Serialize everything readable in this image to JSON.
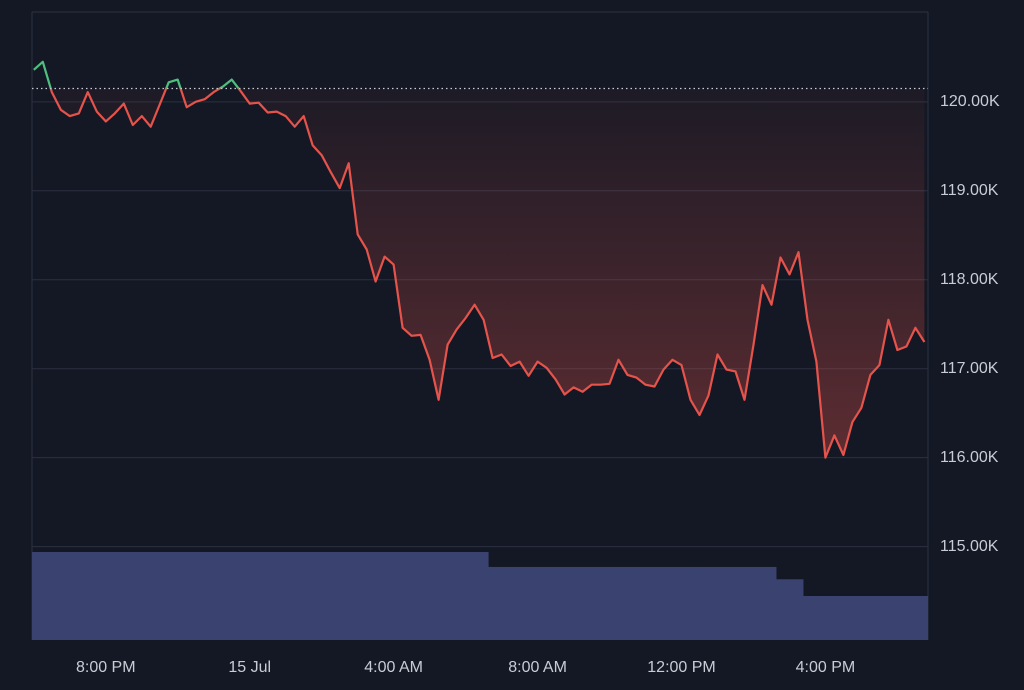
{
  "chart_data": {
    "type": "line",
    "x": [
      -6,
      -5.75,
      -5.5,
      -5.25,
      -5,
      -4.75,
      -4.5,
      -4.25,
      -4,
      -3.75,
      -3.5,
      -3.25,
      -3,
      -2.75,
      -2.5,
      -2.25,
      -2,
      -1.75,
      -1.5,
      -1.25,
      -1,
      -0.75,
      -0.5,
      -0.25,
      0,
      0.25,
      0.5,
      0.75,
      1,
      1.25,
      1.5,
      1.75,
      2,
      2.25,
      2.5,
      2.75,
      3,
      3.25,
      3.5,
      3.75,
      4,
      4.25,
      4.5,
      4.75,
      5,
      5.25,
      5.5,
      5.75,
      6,
      6.25,
      6.5,
      6.75,
      7,
      7.25,
      7.5,
      7.75,
      8,
      8.25,
      8.5,
      8.75,
      9,
      9.25,
      9.5,
      9.75,
      10,
      10.25,
      10.5,
      10.75,
      11,
      11.25,
      11.5,
      11.75,
      12,
      12.25,
      12.5,
      12.75,
      13,
      13.25,
      13.5,
      13.75,
      14,
      14.25,
      14.5,
      14.75,
      15,
      15.25,
      15.5,
      15.75,
      16,
      16.25,
      16.5,
      16.75,
      17,
      17.25,
      17.5,
      17.75,
      18,
      18.25,
      18.5,
      18.75
    ],
    "series": [
      {
        "values": [
          120360,
          120450,
          120110,
          119910,
          119840,
          119870,
          120110,
          119890,
          119780,
          119870,
          119980,
          119740,
          119840,
          119720,
          119970,
          120220,
          120250,
          119940,
          120000,
          120030,
          120110,
          120170,
          120250,
          120120,
          119980,
          119990,
          119880,
          119890,
          119840,
          119720,
          119840,
          119510,
          119400,
          119210,
          119030,
          119310,
          118510,
          118340,
          117980,
          118260,
          118170,
          117460,
          117370,
          117380,
          117100,
          116650,
          117270,
          117440,
          117570,
          117720,
          117550,
          117120,
          117160,
          117030,
          117080,
          116920,
          117080,
          117010,
          116880,
          116710,
          116790,
          116740,
          116820,
          116820,
          116830,
          117100,
          116930,
          116900,
          116820,
          116800,
          116990,
          117100,
          117040,
          116650,
          116480,
          116700,
          117160,
          116990,
          116970,
          116650,
          117270,
          117940,
          117720,
          118250,
          118060,
          118310,
          117550,
          117080,
          116000,
          116250,
          116030,
          116400,
          116560,
          116930,
          117040,
          117550,
          117210,
          117250,
          117460,
          117300
        ],
        "up_color": "#4fbf7f",
        "down_color": "#e5534b"
      }
    ],
    "volume": {
      "values": [
        100,
        100,
        100,
        100,
        100,
        100,
        100,
        100,
        100,
        100,
        100,
        100,
        100,
        100,
        100,
        100,
        100,
        100,
        100,
        100,
        100,
        100,
        100,
        100,
        100,
        100,
        100,
        100,
        100,
        100,
        100,
        100,
        100,
        100,
        100,
        100,
        100,
        100,
        100,
        100,
        100,
        100,
        100,
        100,
        100,
        100,
        100,
        100,
        100,
        100,
        100,
        83,
        83,
        83,
        83,
        83,
        83,
        83,
        83,
        83,
        83,
        83,
        83,
        83,
        83,
        83,
        83,
        83,
        83,
        83,
        83,
        83,
        83,
        83,
        83,
        83,
        83,
        83,
        83,
        83,
        83,
        83,
        83,
        69,
        69,
        69,
        50,
        50,
        50,
        50,
        50,
        50,
        50,
        50,
        50,
        50,
        50,
        50,
        50,
        50
      ],
      "ylim": [
        0,
        100
      ],
      "color": "#3a4270"
    },
    "reference_value": 120150,
    "xlim": [
      -6.05,
      18.85
    ],
    "xticks": [
      {
        "value": -4,
        "label": "8:00 PM"
      },
      {
        "value": 0,
        "label": "15 Jul"
      },
      {
        "value": 4,
        "label": "4:00 AM"
      },
      {
        "value": 8,
        "label": "8:00 AM"
      },
      {
        "value": 12,
        "label": "12:00 PM"
      },
      {
        "value": 16,
        "label": "4:00 PM"
      }
    ],
    "ylim": [
      113950,
      121010
    ],
    "yticks": [
      {
        "value": 115000,
        "label": "115.00K"
      },
      {
        "value": 116000,
        "label": "116.00K"
      },
      {
        "value": 117000,
        "label": "117.00K"
      },
      {
        "value": 118000,
        "label": "118.00K"
      },
      {
        "value": 119000,
        "label": "119.00K"
      },
      {
        "value": 120000,
        "label": "120.00K"
      }
    ],
    "grid": true
  }
}
